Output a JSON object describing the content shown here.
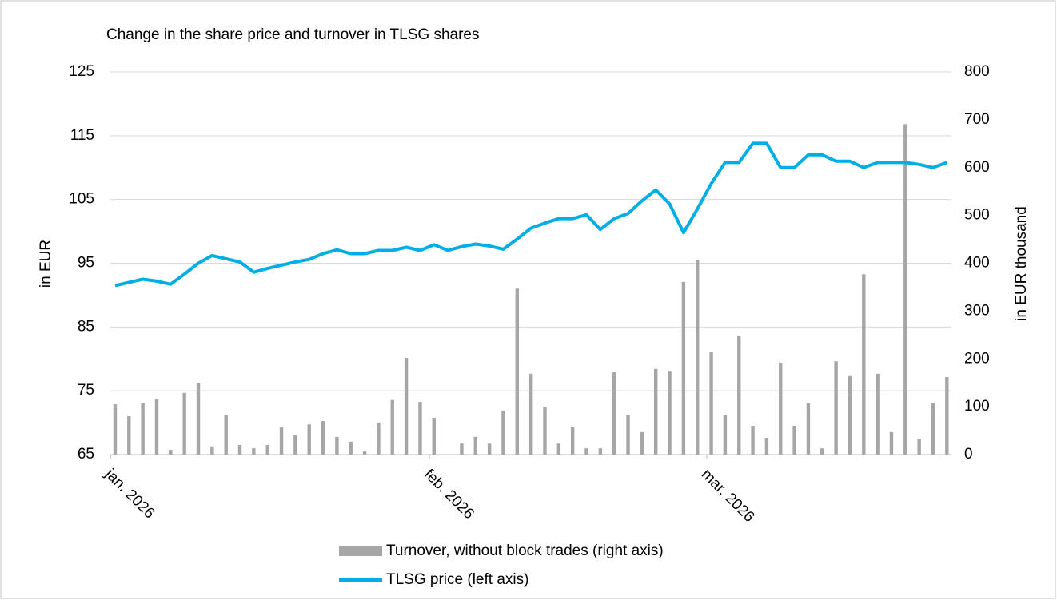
{
  "chart_data": {
    "type": "combo",
    "title": "Change in the share price and turnover in TLSG shares",
    "ylabel": "in EUR",
    "y2label": "in EUR thousand",
    "categories": [
      "jan. 2026",
      null,
      null,
      null,
      null,
      null,
      null,
      null,
      null,
      null,
      null,
      null,
      null,
      null,
      null,
      null,
      null,
      null,
      null,
      null,
      null,
      null,
      null,
      "feb. 2026",
      null,
      null,
      null,
      null,
      null,
      null,
      null,
      null,
      null,
      null,
      null,
      null,
      null,
      null,
      null,
      null,
      null,
      null,
      null,
      "mar. 2026",
      null,
      null,
      null,
      null,
      null,
      null,
      null,
      null,
      null,
      null,
      null,
      null,
      null,
      null,
      null,
      null,
      null
    ],
    "series": [
      {
        "name": "Turnover, without block trades (right axis)",
        "type": "bar",
        "axis": "y2",
        "color": "#a6a6a6",
        "values": [
          105,
          80,
          107,
          117,
          10,
          129,
          149,
          17,
          83,
          20,
          13,
          20,
          57,
          40,
          63,
          70,
          37,
          27,
          7,
          67,
          114,
          202,
          110,
          77,
          null,
          23,
          37,
          23,
          92,
          347,
          169,
          100,
          23,
          57,
          13,
          13,
          172,
          83,
          47,
          179,
          175,
          361,
          407,
          215,
          83,
          249,
          60,
          35,
          192,
          60,
          107,
          13,
          195,
          164,
          377,
          169,
          47,
          691,
          33,
          107,
          162
        ]
      },
      {
        "name": "TLSG price (left axis)",
        "type": "line",
        "axis": "y",
        "color": "#00aee6",
        "values": [
          91.5,
          92,
          92.5,
          92.2,
          91.7,
          93.3,
          95,
          96.2,
          95.7,
          95.2,
          93.6,
          94.2,
          94.7,
          95.2,
          95.6,
          96.5,
          97.1,
          96.5,
          96.5,
          97,
          97,
          97.5,
          97,
          97.9,
          97,
          97.6,
          98,
          97.7,
          97.2,
          98.8,
          100.5,
          101.3,
          102,
          102,
          102.6,
          100.3,
          102,
          102.8,
          104.8,
          106.5,
          104.3,
          99.8,
          103.5,
          107.5,
          110.8,
          110.8,
          113.8,
          113.8,
          110,
          110,
          112,
          112,
          111,
          111,
          110,
          110.8,
          110.8,
          110.8,
          110.5,
          110,
          110.8
        ]
      }
    ],
    "ylim": [
      65,
      125
    ],
    "yticks": [
      65,
      75,
      85,
      95,
      105,
      115,
      125
    ],
    "y2lim": [
      0,
      800
    ],
    "y2ticks": [
      0,
      100,
      200,
      300,
      400,
      500,
      600,
      700,
      800
    ],
    "grid": true,
    "legend": "bottom"
  }
}
